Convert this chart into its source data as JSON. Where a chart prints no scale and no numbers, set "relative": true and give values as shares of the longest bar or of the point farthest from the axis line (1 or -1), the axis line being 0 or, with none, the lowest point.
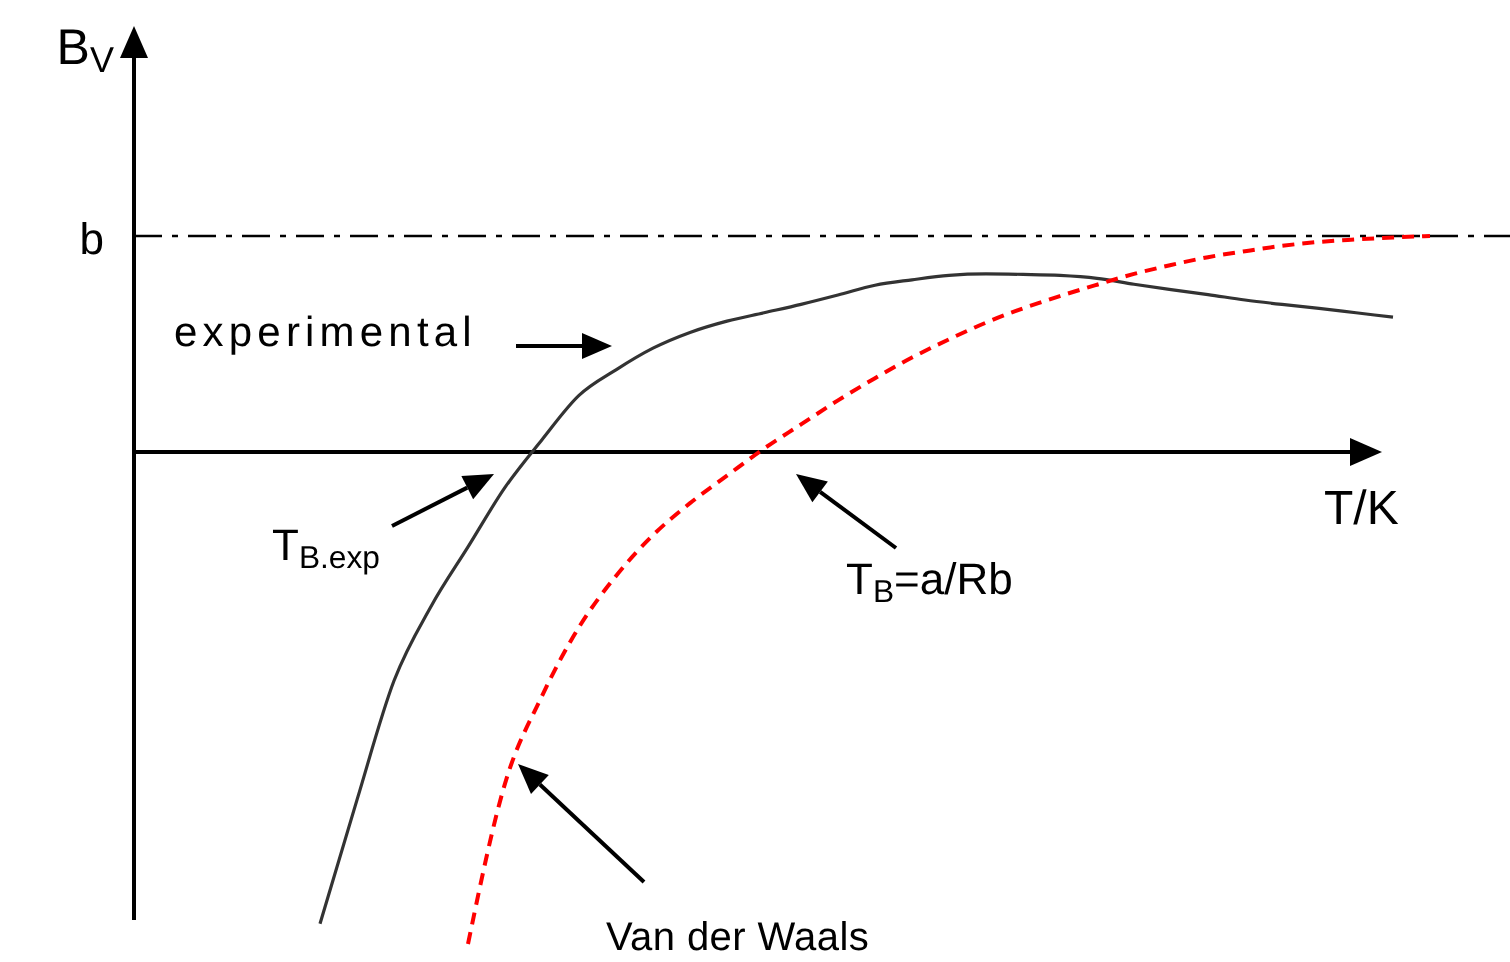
{
  "chart_data": {
    "type": "line",
    "relative": true,
    "xlabel": "T/K",
    "ylabel": "B$_{V}$",
    "categories": [
      null,
      null,
      null,
      null,
      null,
      null,
      null,
      null,
      null,
      null,
      null,
      null,
      null,
      null,
      null,
      null,
      null,
      null,
      null,
      null,
      null,
      null,
      null,
      null,
      null,
      null,
      null,
      null,
      null,
      null,
      null
    ],
    "series": [
      {
        "color": "#333333",
        "line_style": "solid",
        "values": [
          -0.959,
          -0.707,
          -0.465,
          -0.314,
          -0.193,
          -0.072,
          0.025,
          0.115,
          0.167,
          0.211,
          0.243,
          0.266,
          0.283,
          0.3,
          0.319,
          0.339,
          0.35,
          0.359,
          0.362,
          0.361,
          0.359,
          0.353,
          0.341,
          0.33,
          0.32,
          0.309,
          0.3,
          0.292,
          0.283,
          0.274,
          null
        ]
      },
      {
        "color": "#ff0000",
        "line_style": "dashed",
        "values": [
          null,
          null,
          null,
          null,
          -1,
          -0.674,
          -0.496,
          -0.356,
          -0.252,
          -0.169,
          -0.104,
          -0.048,
          0.007,
          0.056,
          0.105,
          0.15,
          0.192,
          0.229,
          0.263,
          0.292,
          0.317,
          0.34,
          0.362,
          0.38,
          0.396,
          0.408,
          0.419,
          0.427,
          0.432,
          0.436,
          0.439
        ]
      }
    ],
    "ref_lines": [
      {
        "axis": "y",
        "value": 0.439,
        "label": "b",
        "color": "#000000",
        "line_style": "dashdot"
      }
    ],
    "annotations": [
      "experimental",
      "T$_{B.exp}$",
      "T$_{B}$=a/Rb",
      "Van der Waals"
    ]
  }
}
